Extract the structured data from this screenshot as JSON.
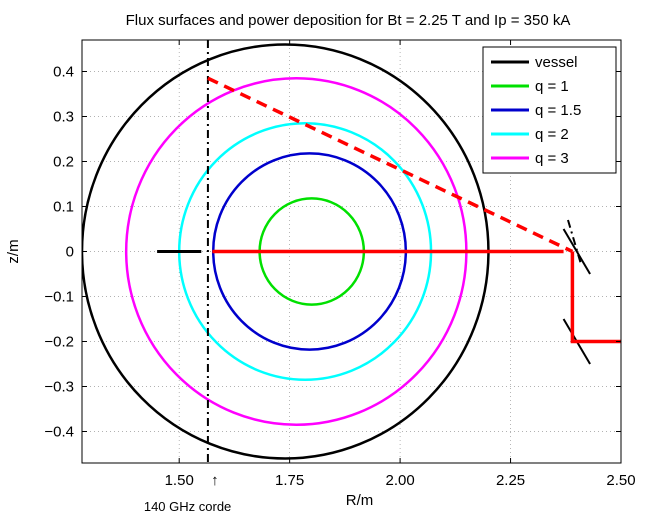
{
  "chart_data": {
    "type": "line",
    "title": "Flux surfaces and power deposition for Bt = 2.25 T and Ip = 350 kA",
    "xlabel": "R/m",
    "ylabel": "z/m",
    "xlim": [
      1.28,
      2.5
    ],
    "ylim": [
      -0.47,
      0.47
    ],
    "x_ticks": [
      1.5,
      1.75,
      2.0,
      2.25,
      2.5
    ],
    "x_tick_labels": [
      "1.50",
      "1.75",
      "2.00",
      "2.25",
      "2.50"
    ],
    "y_ticks": [
      0.4,
      0.3,
      0.2,
      0.1,
      0,
      -0.1,
      -0.2,
      -0.3,
      -0.4
    ],
    "y_tick_labels": [
      "0.4",
      "0.3",
      "0.2",
      "0.1",
      "0",
      "−0.1",
      "−0.2",
      "−0.3",
      "−0.4"
    ],
    "grid": true,
    "legend_position": "top-right",
    "series": [
      {
        "name": "vessel",
        "color": "#000000",
        "shape": "circle",
        "center": [
          1.74,
          0.0
        ],
        "radius": 0.46
      },
      {
        "name": "q = 1",
        "color": "#00e000",
        "shape": "circle",
        "center": [
          1.8,
          0.0
        ],
        "radius": 0.118
      },
      {
        "name": "q = 1.5",
        "color": "#0000cc",
        "shape": "circle",
        "center": [
          1.795,
          0.0
        ],
        "radius": 0.218
      },
      {
        "name": "q = 2",
        "color": "#00ffff",
        "shape": "circle",
        "center": [
          1.785,
          0.0
        ],
        "radius": 0.285
      },
      {
        "name": "q = 3",
        "color": "#ff00ff",
        "shape": "circle",
        "center": [
          1.765,
          0.0
        ],
        "radius": 0.385
      }
    ],
    "beams": [
      {
        "kind": "solid",
        "color": "#ff0000",
        "points": [
          [
            1.575,
            0.0
          ],
          [
            2.37,
            0.0
          ]
        ]
      },
      {
        "kind": "solid",
        "color": "#ff0000",
        "points": [
          [
            2.5,
            -0.2
          ],
          [
            2.39,
            -0.2
          ],
          [
            2.39,
            0.0
          ]
        ]
      },
      {
        "kind": "dashed",
        "color": "#ff0000",
        "points": [
          [
            1.565,
            0.385
          ],
          [
            2.39,
            0.0
          ]
        ]
      }
    ],
    "mirrors": [
      {
        "points": [
          [
            2.37,
            0.05
          ],
          [
            2.43,
            -0.05
          ]
        ]
      },
      {
        "points": [
          [
            2.37,
            -0.15
          ],
          [
            2.43,
            -0.25
          ]
        ]
      }
    ],
    "markers": [
      {
        "kind": "solid",
        "color": "#000000",
        "points": [
          [
            1.45,
            0.0
          ],
          [
            1.55,
            0.0
          ]
        ]
      },
      {
        "kind": "dashdot",
        "color": "#000000",
        "points": [
          [
            1.565,
            0.47
          ],
          [
            1.565,
            -0.47
          ]
        ]
      },
      {
        "kind": "dashdot",
        "color": "#000000",
        "points": [
          [
            2.38,
            0.07
          ],
          [
            2.41,
            -0.03
          ]
        ]
      }
    ],
    "annotations": [
      {
        "text": "↑",
        "x": 1.57
      },
      {
        "text": "140 GHz corde",
        "x": 1.42
      }
    ]
  }
}
